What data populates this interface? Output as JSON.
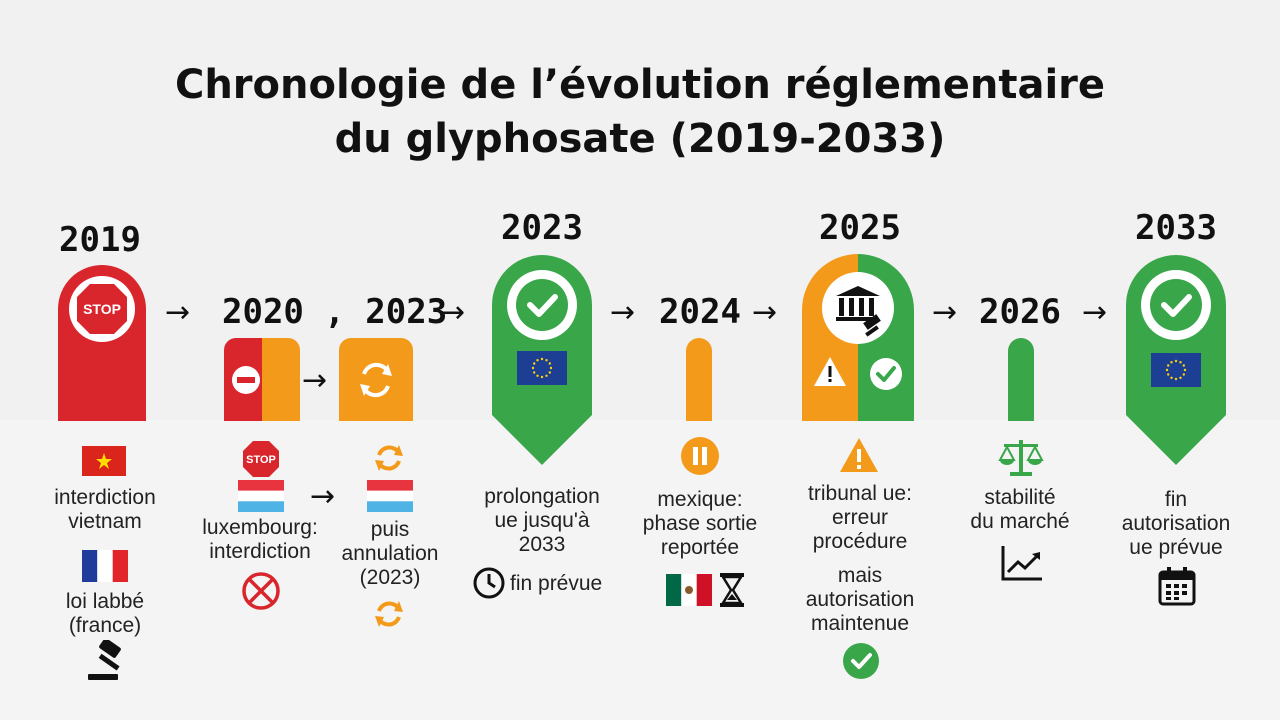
{
  "title": {
    "line1": "Chronologie de l’évolution réglementaire",
    "line2": "du glyphosate (2019-2033)"
  },
  "colors": {
    "red": "#d8262c",
    "orange": "#f39a1a",
    "green": "#3aa64a",
    "eu_blue": "#1c3f94"
  },
  "milestones": {
    "y2019": {
      "year": "2019",
      "stop_sign": "STOP",
      "label_vietnam": [
        "interdiction",
        "vietnam"
      ],
      "label_france": [
        "loi labbé",
        "(france)"
      ]
    },
    "y2020": {
      "year": "2020 , 2023",
      "stop_sign": "STOP",
      "label_lux": [
        "luxembourg:",
        "interdiction"
      ],
      "label_annul": [
        "puis",
        "annulation",
        "(2023)"
      ]
    },
    "y2023": {
      "year": "2023",
      "label": [
        "prolongation",
        "ue jusqu'à",
        "2033"
      ],
      "fin_label": "fin prévue"
    },
    "y2024": {
      "year": "2024",
      "label": [
        "mexique:",
        "phase sortie",
        "reportée"
      ]
    },
    "y2025": {
      "year": "2025",
      "label": [
        "tribunal ue:",
        "erreur",
        "procédure"
      ],
      "label2": [
        "mais",
        "autorisation",
        "maintenue"
      ]
    },
    "y2026": {
      "year": "2026",
      "label": [
        "stabilité",
        "du marché"
      ]
    },
    "y2033": {
      "year": "2033",
      "label": [
        "fin",
        "autorisation",
        "ue prévue"
      ]
    }
  },
  "arrow_glyph": "→"
}
